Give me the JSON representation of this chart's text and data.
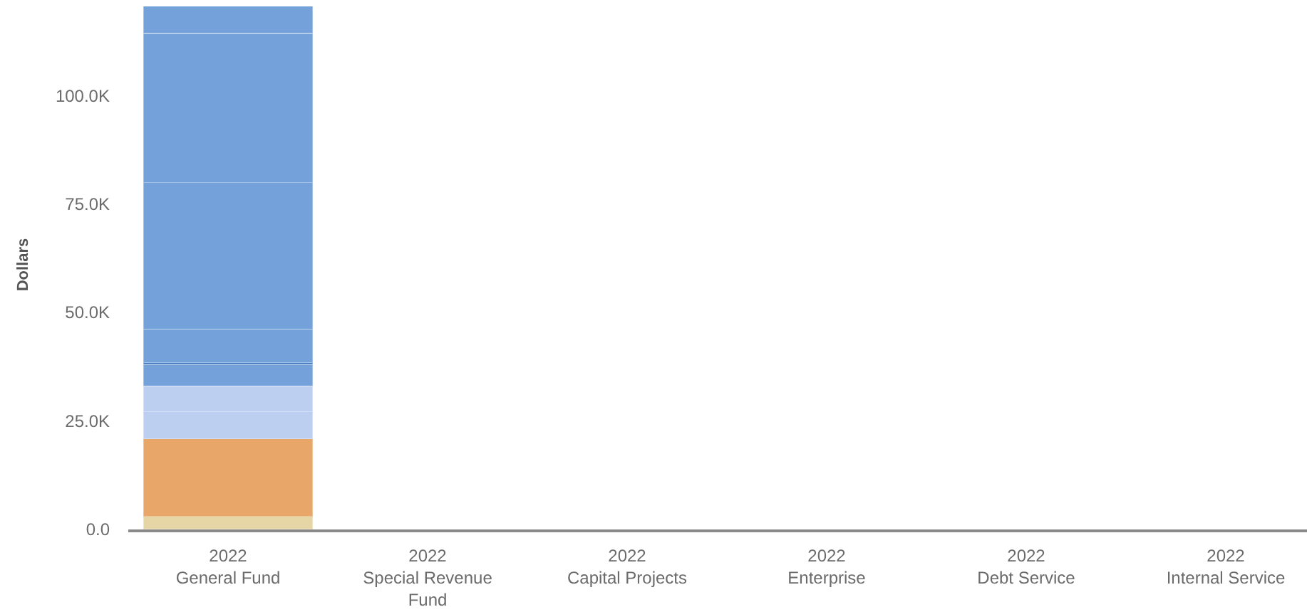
{
  "chart_data": {
    "type": "bar",
    "stacked": true,
    "ylabel": "Dollars",
    "categories": [
      "2022\nGeneral Fund",
      "2022\nSpecial Revenue\nFund",
      "2022\nCapital Projects",
      "2022\nEnterprise",
      "2022\nDebt Service",
      "2022\nInternal Service"
    ],
    "series": [
      {
        "color": "#e6d6a6",
        "values": [
          3000,
          null,
          null,
          null,
          null,
          null
        ]
      },
      {
        "color": "#e8a768",
        "values": [
          17900,
          null,
          null,
          null,
          null,
          null
        ]
      },
      {
        "color": "#bccff0",
        "values": [
          6200,
          null,
          null,
          null,
          null,
          null
        ]
      },
      {
        "color": "#bccff0",
        "values": [
          6000,
          null,
          null,
          null,
          null,
          null
        ]
      },
      {
        "color": "#74a1da",
        "values": [
          4900,
          null,
          null,
          null,
          null,
          null
        ]
      },
      {
        "color": "#4f80c2",
        "values": [
          400,
          null,
          null,
          null,
          null,
          null
        ]
      },
      {
        "color": "#74a1da",
        "values": [
          7800,
          null,
          null,
          null,
          null,
          null
        ]
      },
      {
        "color": "#74a1da",
        "values": [
          33700,
          null,
          null,
          null,
          null,
          null
        ]
      },
      {
        "color": "#74a1da",
        "values": [
          34400,
          null,
          null,
          null,
          null,
          null
        ]
      },
      {
        "color": "#74a1da",
        "values": [
          6300,
          null,
          null,
          null,
          null,
          null
        ]
      }
    ],
    "ylim": [
      0,
      122000
    ],
    "yticks": [
      {
        "value": 0,
        "label": "0.0"
      },
      {
        "value": 25000,
        "label": "25.0K"
      },
      {
        "value": 50000,
        "label": "50.0K"
      },
      {
        "value": 75000,
        "label": "75.0K"
      },
      {
        "value": 100000,
        "label": "100.0K"
      }
    ]
  }
}
